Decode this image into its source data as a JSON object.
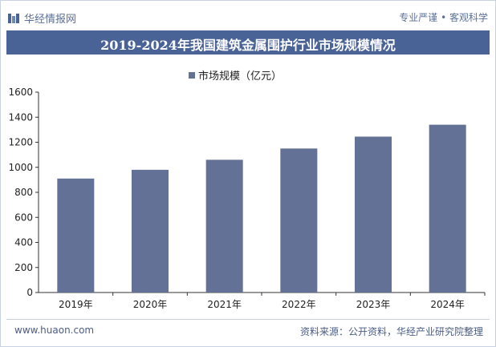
{
  "header": {
    "brand": "华经情报网",
    "tagline": "专业严谨 • 客观科学"
  },
  "chart_data": {
    "type": "bar",
    "title": "2019-2024年我国建筑金属围护行业市场规模情况",
    "categories": [
      "2019年",
      "2020年",
      "2021年",
      "2022年",
      "2023年",
      "2024年"
    ],
    "series": [
      {
        "name": "市场规模（亿元）",
        "values": [
          910,
          980,
          1060,
          1150,
          1245,
          1340
        ]
      }
    ],
    "ylim": [
      0,
      1600
    ],
    "yticks": [
      0,
      200,
      400,
      600,
      800,
      1000,
      1200,
      1400,
      1600
    ],
    "grid": false,
    "legend_position": "top-center",
    "colors": {
      "bar": "#647196"
    }
  },
  "footer": {
    "website": "www.huaon.com",
    "source": "资料来源：公开资料，华经产业研究院整理"
  }
}
